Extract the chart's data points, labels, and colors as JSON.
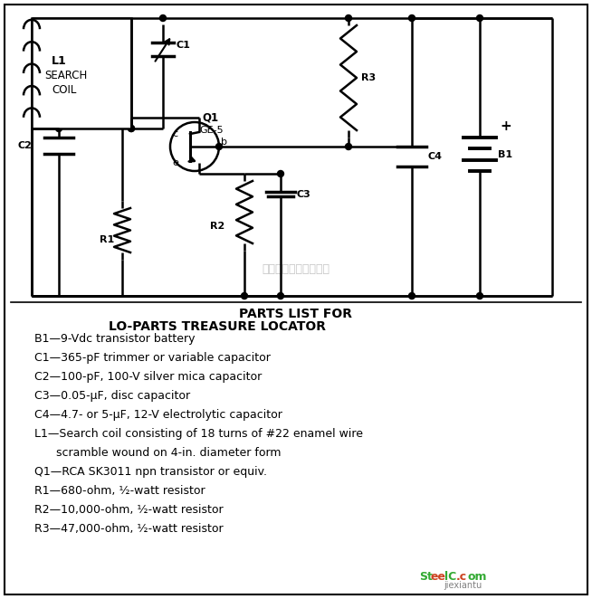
{
  "bg_color": "#ffffff",
  "title_parts_list": "PARTS LIST FOR",
  "subtitle_parts_list": "LO-PARTS TREASURE LOCATOR",
  "parts": [
    "B1—9-Vdc transistor battery",
    "C1—365-pF trimmer or variable capacitor",
    "C2—100-pF, 100-V silver mica capacitor",
    "C3—0.05-μF, disc capacitor",
    "C4—4.7- or 5-μF, 12-V electrolytic capacitor",
    "L1—Search coil consisting of 18 turns of #22 enamel wire",
    "      scramble wound on 4-in. diameter form",
    "Q1—RCA SK3011 npn transistor or equiv.",
    "R1—680-ohm, ½-watt resistor",
    "R2—10,000-ohm, ½-watt resistor",
    "R3—47,000-ohm, ½-watt resistor"
  ],
  "watermark": "杭州测累科技有限公司"
}
